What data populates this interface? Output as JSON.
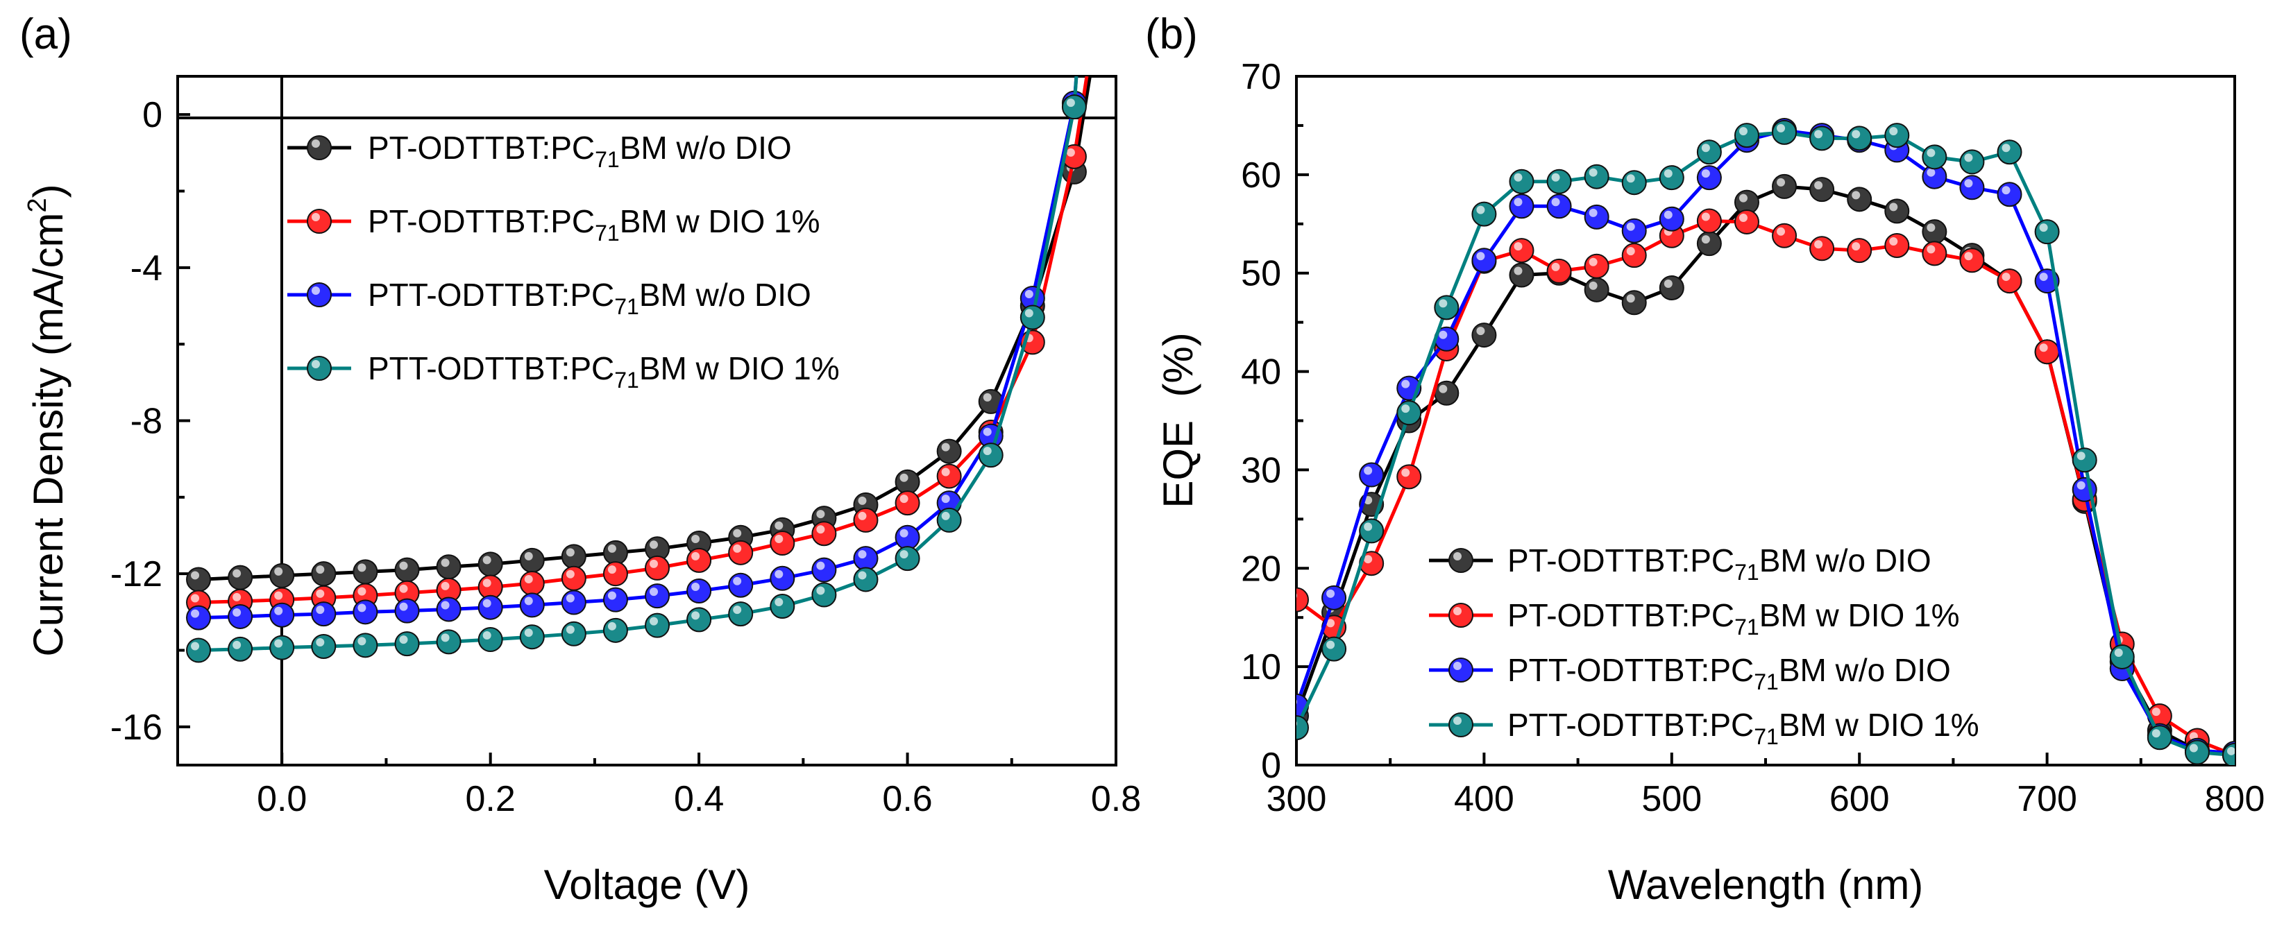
{
  "chart_data": [
    {
      "panel": "(a)",
      "type": "line",
      "xlabel": "Voltage (V)",
      "ylabel": "Current Density (mA/cm²)",
      "ylabel_parts": {
        "main": "Current Density (mA/cm",
        "sup": "2",
        "end": ")"
      },
      "xlim": [
        -0.1,
        0.8
      ],
      "ylim": [
        -17,
        1
      ],
      "xticks": [
        0.0,
        0.2,
        0.4,
        0.6,
        0.8
      ],
      "xtick_labels": [
        "0.0",
        "0.2",
        "0.4",
        "0.6",
        "0.8"
      ],
      "yticks": [
        0,
        -4,
        -8,
        -12,
        -16
      ],
      "ytick_labels": [
        "0",
        "-4",
        "-8",
        "-12",
        "-16"
      ],
      "reference_lines": {
        "x": 0,
        "y": 0
      },
      "legend_position": "top-left",
      "x": [
        -0.08,
        -0.04,
        0.0,
        0.04,
        0.08,
        0.12,
        0.16,
        0.2,
        0.24,
        0.28,
        0.32,
        0.36,
        0.4,
        0.44,
        0.48,
        0.52,
        0.56,
        0.6,
        0.64,
        0.68,
        0.72,
        0.76
      ],
      "series": [
        {
          "name": "PT-ODTTBT:PC71BM w/o DIO",
          "legend": {
            "pre": "PT-ODTTBT:PC",
            "sub": "71",
            "post": "BM w/o DIO"
          },
          "color": "#000000",
          "marker_color": "#3a3a3a",
          "values": [
            -12.15,
            -12.1,
            -12.05,
            -12.0,
            -11.95,
            -11.9,
            -11.82,
            -11.75,
            -11.65,
            -11.55,
            -11.45,
            -11.35,
            -11.2,
            -11.05,
            -10.85,
            -10.55,
            -10.2,
            -9.6,
            -8.8,
            -7.5,
            -5.0,
            -1.5
          ],
          "tail": [
            0.775,
            1.0
          ]
        },
        {
          "name": "PT-ODTTBT:PC71BM w DIO 1%",
          "legend": {
            "pre": "PT-ODTTBT:PC",
            "sub": "71",
            "post": "BM w DIO 1%"
          },
          "color": "#ff0000",
          "marker_color": "#ff2a2a",
          "values": [
            -12.75,
            -12.72,
            -12.68,
            -12.63,
            -12.57,
            -12.5,
            -12.43,
            -12.35,
            -12.25,
            -12.12,
            -12.0,
            -11.85,
            -11.65,
            -11.45,
            -11.2,
            -10.95,
            -10.6,
            -10.15,
            -9.45,
            -8.3,
            -5.95,
            -1.1
          ],
          "tail": [
            0.772,
            1.0
          ]
        },
        {
          "name": "PTT-ODTTBT:PC71BM w/o DIO",
          "legend": {
            "pre": "PTT-ODTTBT:PC",
            "sub": "71",
            "post": "BM w/o DIO"
          },
          "color": "#0000ff",
          "marker_color": "#2a2aff",
          "values": [
            -13.15,
            -13.12,
            -13.08,
            -13.05,
            -13.0,
            -12.97,
            -12.93,
            -12.88,
            -12.82,
            -12.75,
            -12.68,
            -12.58,
            -12.45,
            -12.3,
            -12.12,
            -11.9,
            -11.6,
            -11.05,
            -10.15,
            -8.4,
            -4.8,
            0.3
          ],
          "tail": [
            0.762,
            1.0
          ]
        },
        {
          "name": "PTT-ODTTBT:PC71BM w DIO 1%",
          "legend": {
            "pre": "PTT-ODTTBT:PC",
            "sub": "71",
            "post": "BM w DIO 1%"
          },
          "color": "#008080",
          "marker_color": "#1a8a8a",
          "values": [
            -14.0,
            -13.97,
            -13.93,
            -13.9,
            -13.87,
            -13.83,
            -13.78,
            -13.72,
            -13.65,
            -13.57,
            -13.48,
            -13.35,
            -13.2,
            -13.05,
            -12.85,
            -12.55,
            -12.15,
            -11.6,
            -10.6,
            -8.9,
            -5.3,
            0.2
          ],
          "tail": [
            0.762,
            1.0
          ]
        }
      ]
    },
    {
      "panel": "(b)",
      "type": "line",
      "xlabel": "Wavelength (nm)",
      "ylabel": "EQE  (%)",
      "xlim": [
        300,
        800
      ],
      "ylim": [
        0,
        70
      ],
      "xticks": [
        300,
        400,
        500,
        600,
        700,
        800
      ],
      "xtick_labels": [
        "300",
        "400",
        "500",
        "600",
        "700",
        "800"
      ],
      "yticks": [
        0,
        10,
        20,
        30,
        40,
        50,
        60,
        70
      ],
      "ytick_labels": [
        "0",
        "10",
        "20",
        "30",
        "40",
        "50",
        "60",
        "70"
      ],
      "legend_position": "bottom-center",
      "x": [
        300,
        320,
        340,
        360,
        380,
        400,
        420,
        440,
        460,
        480,
        500,
        520,
        540,
        560,
        580,
        600,
        620,
        640,
        660,
        680,
        700,
        720,
        740,
        760,
        780,
        800
      ],
      "series": [
        {
          "name": "PT-ODTTBT:PC71BM w/o DIO",
          "legend": {
            "pre": "PT-ODTTBT:PC",
            "sub": "71",
            "post": "BM w/o DIO"
          },
          "color": "#000000",
          "marker_color": "#3a3a3a",
          "values": [
            5.0,
            15.5,
            26.5,
            35.0,
            37.8,
            43.7,
            49.8,
            50.0,
            48.3,
            47.0,
            48.5,
            53.0,
            57.2,
            58.8,
            58.5,
            57.5,
            56.3,
            54.2,
            51.8,
            49.2,
            42.0,
            26.8,
            10.5,
            3.5,
            1.5,
            1.0
          ]
        },
        {
          "name": "PT-ODTTBT:PC71BM w DIO 1%",
          "legend": {
            "pre": "PT-ODTTBT:PC",
            "sub": "71",
            "post": "BM w DIO 1%"
          },
          "color": "#ff0000",
          "marker_color": "#ff2a2a",
          "values": [
            16.8,
            14.0,
            20.5,
            29.3,
            42.3,
            51.2,
            52.3,
            50.2,
            50.7,
            51.8,
            53.8,
            55.3,
            55.2,
            53.8,
            52.5,
            52.3,
            52.8,
            52.0,
            51.3,
            49.2,
            42.0,
            27.0,
            12.3,
            5.0,
            2.5,
            1.0
          ]
        },
        {
          "name": "PTT-ODTTBT:PC71BM w/o DIO",
          "legend": {
            "pre": "PTT-ODTTBT:PC",
            "sub": "71",
            "post": "BM w/o DIO"
          },
          "color": "#0000ff",
          "marker_color": "#2a2aff",
          "values": [
            6.0,
            17.0,
            29.5,
            38.3,
            43.3,
            51.3,
            56.8,
            56.8,
            55.7,
            54.3,
            55.5,
            59.7,
            63.5,
            64.5,
            64.0,
            63.5,
            62.5,
            59.8,
            58.7,
            58.0,
            49.2,
            28.0,
            9.8,
            3.0,
            1.5,
            1.2
          ]
        },
        {
          "name": "PTT-ODTTBT:PC71BM w DIO 1%",
          "legend": {
            "pre": "PTT-ODTTBT:PC",
            "sub": "71",
            "post": "BM w DIO 1%"
          },
          "color": "#008080",
          "marker_color": "#1a8a8a",
          "values": [
            3.8,
            11.8,
            23.8,
            35.8,
            46.5,
            56.0,
            59.3,
            59.3,
            59.8,
            59.2,
            59.7,
            62.3,
            64.0,
            64.3,
            63.7,
            63.7,
            64.0,
            61.8,
            61.3,
            62.3,
            54.2,
            31.0,
            11.0,
            2.8,
            1.3,
            1.0
          ]
        }
      ]
    }
  ]
}
